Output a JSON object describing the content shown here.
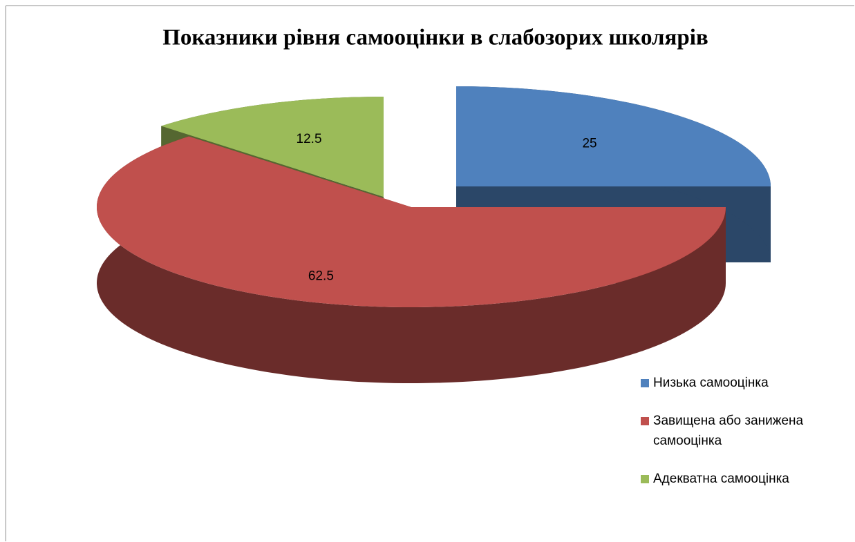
{
  "chart_data": {
    "type": "pie",
    "title": "Показники рівня самооцінки в слабозорих школярів",
    "categories": [
      "Низька самооцінка",
      "Завищена або занижена самооцінка",
      "Адекватна самооцінка"
    ],
    "values": [
      25,
      62.5,
      12.5
    ],
    "colors": [
      "#4f81bd",
      "#c0504d",
      "#9bbb59"
    ],
    "legend": "right"
  }
}
